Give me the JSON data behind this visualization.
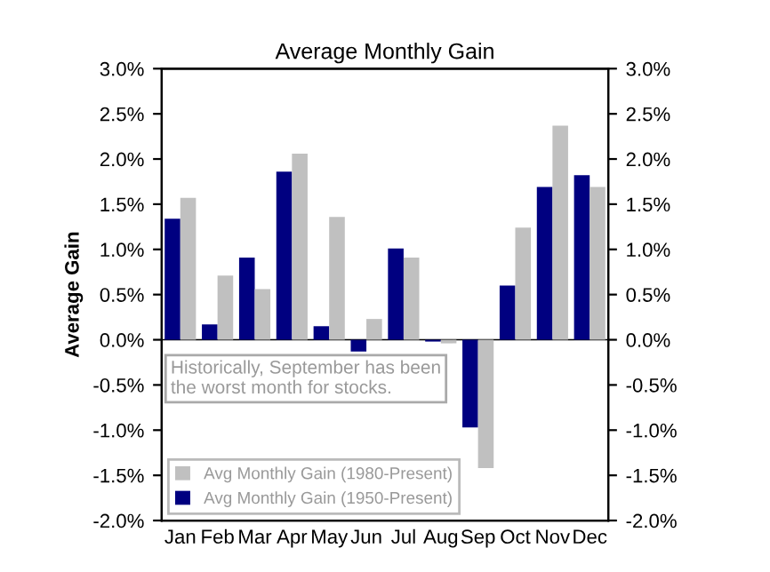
{
  "chart_data": {
    "type": "bar",
    "title": "Average Monthly Gain",
    "ylabel": "Average Gain",
    "categories": [
      "Jan",
      "Feb",
      "Mar",
      "Apr",
      "May",
      "Jun",
      "Jul",
      "Aug",
      "Sep",
      "Oct",
      "Nov",
      "Dec"
    ],
    "series": [
      {
        "name": "Avg Monthly Gain (1950-Present)",
        "color": "#000080",
        "values": [
          1.34,
          0.17,
          0.91,
          1.86,
          0.15,
          -0.13,
          1.01,
          -0.02,
          -0.97,
          0.6,
          1.69,
          1.82
        ]
      },
      {
        "name": "Avg Monthly Gain (1980-Present)",
        "color": "#c0c0c0",
        "values": [
          1.57,
          0.71,
          0.56,
          2.06,
          1.36,
          0.23,
          0.91,
          -0.04,
          -1.42,
          1.24,
          2.37,
          1.69
        ]
      }
    ],
    "annotations": [
      "Historically, September has been the worst month for stocks."
    ],
    "ylim": [
      -2.0,
      3.0
    ],
    "yticks": [
      {
        "value": -2.0,
        "label": "-2.0%"
      },
      {
        "value": -1.5,
        "label": "-1.5%"
      },
      {
        "value": -1.0,
        "label": "-1.0%"
      },
      {
        "value": -0.5,
        "label": "-0.5%"
      },
      {
        "value": 0.0,
        "label": "0.0%"
      },
      {
        "value": 0.5,
        "label": "0.5%"
      },
      {
        "value": 1.0,
        "label": "1.0%"
      },
      {
        "value": 1.5,
        "label": "1.5%"
      },
      {
        "value": 2.0,
        "label": "2.0%"
      },
      {
        "value": 2.5,
        "label": "2.5%"
      },
      {
        "value": 3.0,
        "label": "3.0%"
      }
    ],
    "y2lim": [
      -2.0,
      3.0
    ],
    "y2ticks": [
      {
        "value": -2.0,
        "label": "-2.0%"
      },
      {
        "value": -1.5,
        "label": "-1.5%"
      },
      {
        "value": -1.0,
        "label": "-1.0%"
      },
      {
        "value": -0.5,
        "label": "-0.5%"
      },
      {
        "value": 0.0,
        "label": "0.0%"
      },
      {
        "value": 0.5,
        "label": "0.5%"
      },
      {
        "value": 1.0,
        "label": "1.0%"
      },
      {
        "value": 1.5,
        "label": "1.5%"
      },
      {
        "value": 2.0,
        "label": "2.0%"
      },
      {
        "value": 2.5,
        "label": "2.5%"
      },
      {
        "value": 3.0,
        "label": "3.0%"
      }
    ],
    "legend": "bottom left"
  }
}
